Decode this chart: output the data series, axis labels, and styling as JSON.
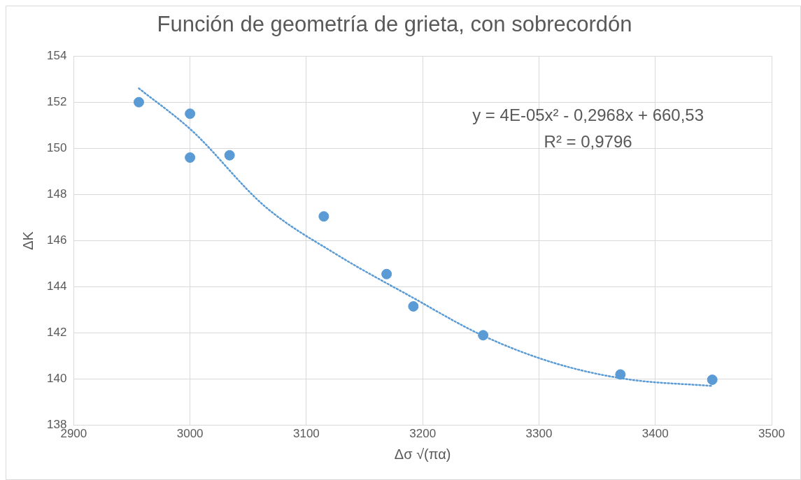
{
  "chart_data": {
    "type": "scatter",
    "title": "Función de geometría de grieta, con sobrecordón",
    "xlabel": "Δσ √(πα)",
    "ylabel": "ΔK",
    "xlim": [
      2900,
      3500
    ],
    "xticks": [
      2900,
      3000,
      3100,
      3200,
      3300,
      3400,
      3500
    ],
    "ylim": [
      138,
      154
    ],
    "yticks": [
      138,
      140,
      142,
      144,
      146,
      148,
      150,
      152,
      154
    ],
    "grid": true,
    "legend": false,
    "marker": "circle",
    "annotations": [
      "y = 4E-05x² - 0,2968x + 660,53",
      "R² = 0,9796"
    ],
    "series": [
      {
        "color": "#5b9bd5",
        "x": [
          2956,
          3000,
          3000,
          3034,
          3115,
          3169,
          3192,
          3252,
          3370,
          3449
        ],
        "values": [
          152.0,
          151.5,
          149.6,
          149.7,
          147.05,
          144.55,
          143.15,
          141.9,
          140.2,
          139.97
        ]
      },
      {
        "type": "line",
        "color": "#5b9bd5",
        "marker": "none",
        "line_style": "dotted",
        "x": [
          2956,
          3002,
          3064,
          3126,
          3189,
          3251,
          3313,
          3375,
          3449
        ],
        "values": [
          152.6,
          150.75,
          147.5,
          145.4,
          143.6,
          141.9,
          140.7,
          140.0,
          139.7
        ]
      }
    ]
  }
}
